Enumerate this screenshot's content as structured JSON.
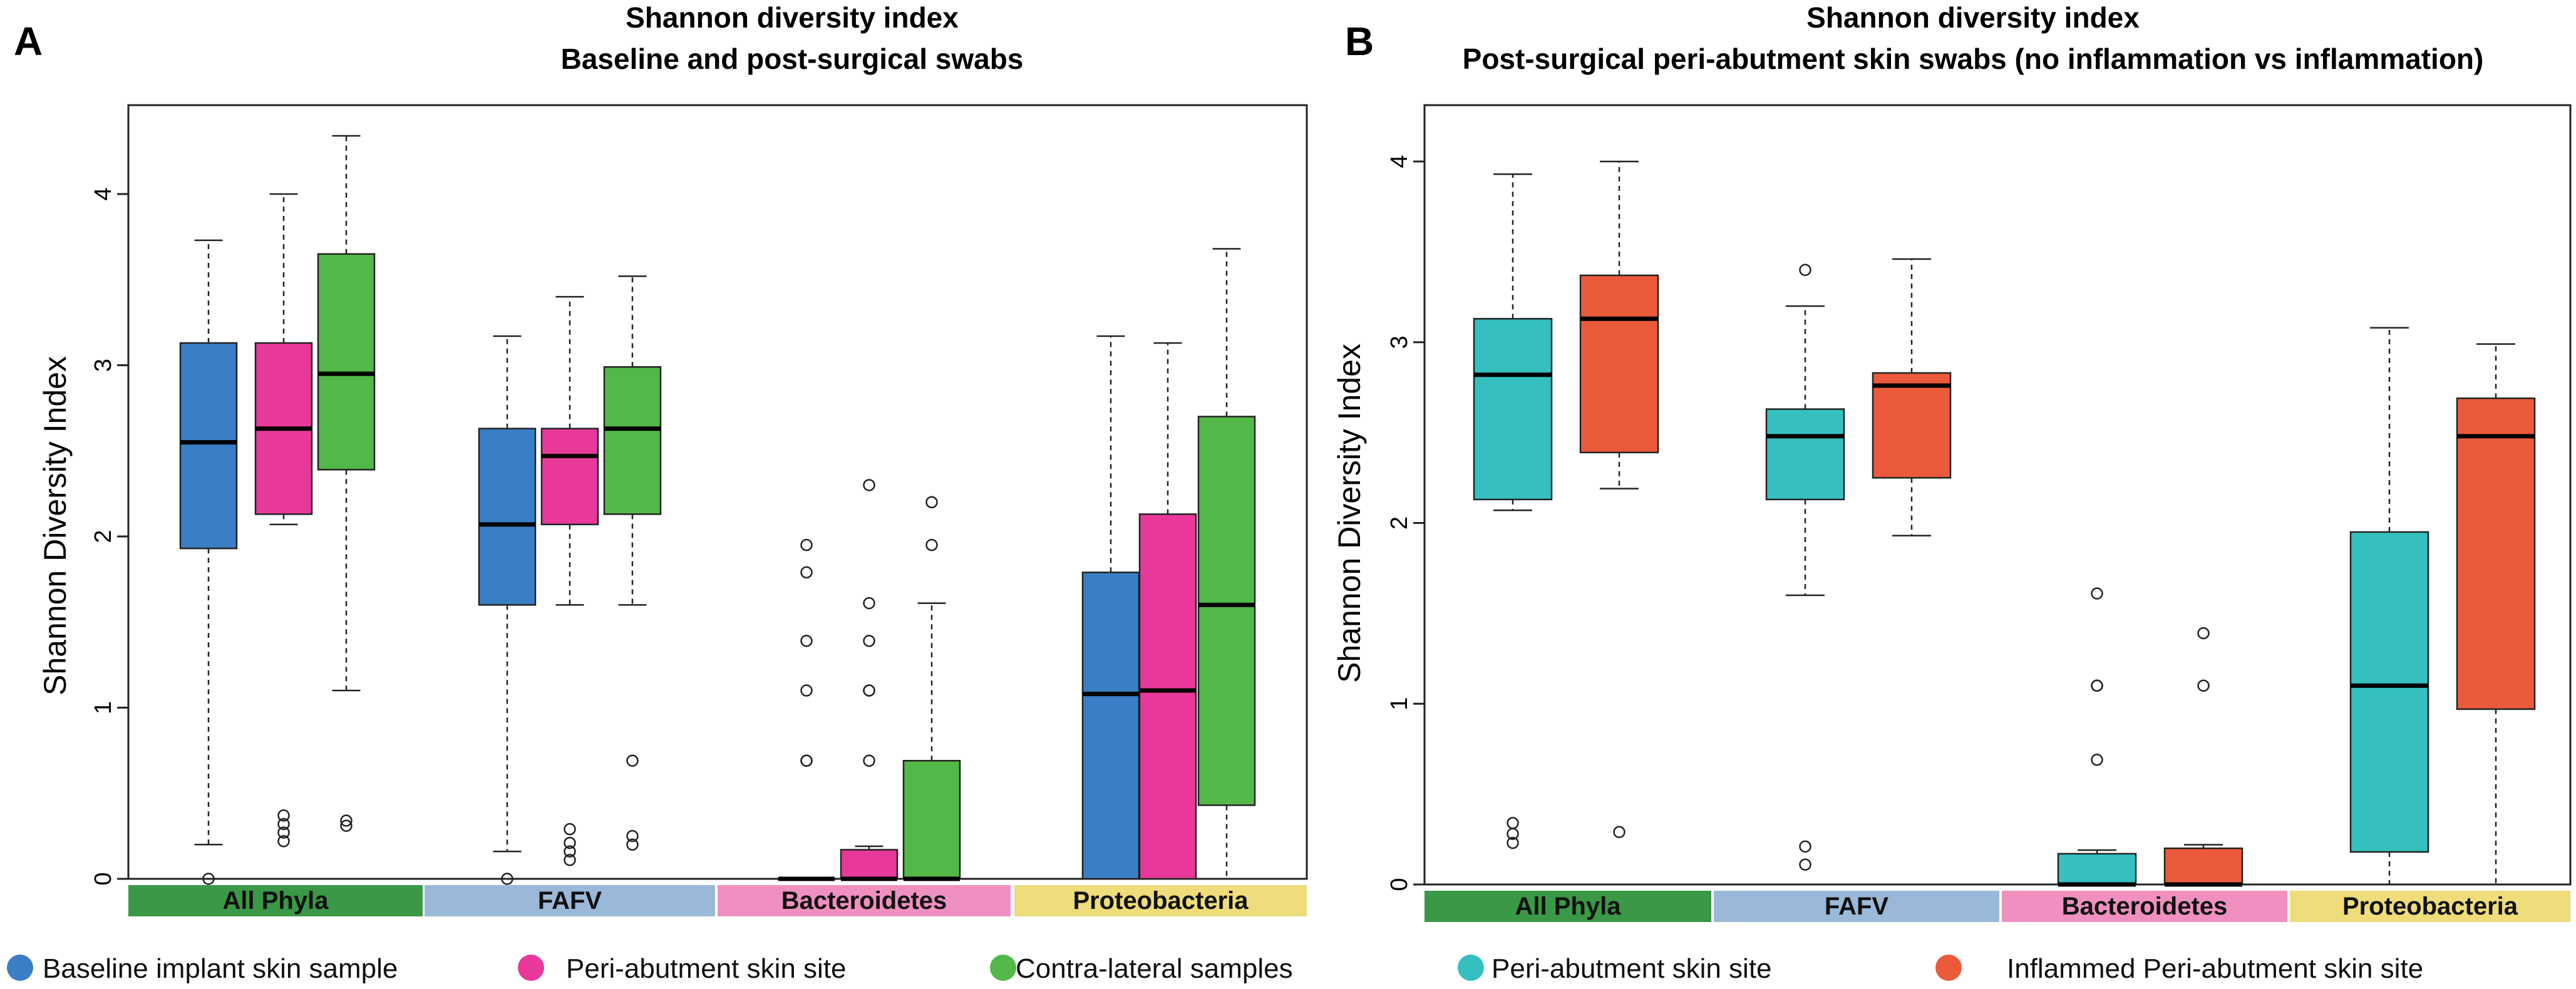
{
  "panels": [
    {
      "letter": "A",
      "title_line1": "Shannon diversity index",
      "title_line2": "Baseline and post-surgical swabs",
      "ylabel": "Shannon Diversity Index",
      "ylim": [
        0,
        4.5
      ],
      "yticks": [
        0,
        1,
        2,
        3,
        4
      ],
      "groups": [
        {
          "label": "All Phyla",
          "color": "#3a9847"
        },
        {
          "label": "FAFV",
          "color": "#9ab9d8"
        },
        {
          "label": "Bacteroidetes",
          "color": "#f090c0"
        },
        {
          "label": "Proteobacteria",
          "color": "#efdc7a"
        }
      ],
      "legend": [
        {
          "label": "Baseline implant skin sample",
          "color": "#3a7ec5"
        },
        {
          "label": "Peri-abutment skin site",
          "color": "#e8399a"
        },
        {
          "label": "Contra-lateral samples",
          "color": "#52b848"
        }
      ]
    },
    {
      "letter": "B",
      "title_line1": "Shannon diversity index",
      "title_line2": "Post-surgical peri-abutment skin swabs (no inflammation vs inflammation)",
      "ylabel": "Shannon Diversity Index",
      "ylim": [
        0,
        4.35
      ],
      "yticks": [
        0,
        1,
        2,
        3,
        4
      ],
      "groups": [
        {
          "label": "All Phyla",
          "color": "#3a9847"
        },
        {
          "label": "FAFV",
          "color": "#9ab9d8"
        },
        {
          "label": "Bacteroidetes",
          "color": "#f090c0"
        },
        {
          "label": "Proteobacteria",
          "color": "#efdc7a"
        }
      ],
      "legend": [
        {
          "label": "Peri-abutment skin site",
          "color": "#35bfbf"
        },
        {
          "label": "Inflammed Peri-abutment skin site",
          "color": "#ec5a3c"
        }
      ]
    }
  ],
  "chart_data": [
    {
      "type": "boxplot",
      "title": "Shannon diversity index — Baseline and post-surgical swabs",
      "ylabel": "Shannon Diversity Index",
      "ylim": [
        0,
        4.5
      ],
      "categories": [
        "All Phyla",
        "FAFV",
        "Bacteroidetes",
        "Proteobacteria"
      ],
      "series": [
        {
          "name": "Baseline implant skin sample",
          "color": "#3a7ec5",
          "boxes": [
            {
              "whisker_low": 0.2,
              "q1": 1.93,
              "median": 2.55,
              "q3": 3.13,
              "whisker_high": 3.73,
              "outliers": [
                0.0
              ]
            },
            {
              "whisker_low": 0.16,
              "q1": 1.6,
              "median": 2.07,
              "q3": 2.63,
              "whisker_high": 3.17,
              "outliers": [
                0.0
              ]
            },
            {
              "whisker_low": 0.0,
              "q1": 0.0,
              "median": 0.0,
              "q3": 0.0,
              "whisker_high": 0.0,
              "outliers": [
                0.69,
                0.69,
                1.1,
                1.39,
                1.79,
                1.95
              ]
            },
            {
              "whisker_low": 0.0,
              "q1": 0.0,
              "median": 1.08,
              "q3": 1.79,
              "whisker_high": 3.17,
              "outliers": []
            }
          ]
        },
        {
          "name": "Peri-abutment skin site",
          "color": "#e8399a",
          "boxes": [
            {
              "whisker_low": 2.07,
              "q1": 2.13,
              "median": 2.63,
              "q3": 3.13,
              "whisker_high": 4.0,
              "outliers": [
                0.22,
                0.27,
                0.32,
                0.37
              ]
            },
            {
              "whisker_low": 1.6,
              "q1": 2.07,
              "median": 2.47,
              "q3": 2.63,
              "whisker_high": 3.4,
              "outliers": [
                0.11,
                0.16,
                0.21,
                0.29
              ]
            },
            {
              "whisker_low": 0.0,
              "q1": 0.0,
              "median": 0.0,
              "q3": 0.17,
              "whisker_high": 0.19,
              "outliers": [
                0.69,
                1.1,
                1.1,
                1.39,
                1.61,
                2.3
              ]
            },
            {
              "whisker_low": 0.0,
              "q1": 0.0,
              "median": 1.1,
              "q3": 2.13,
              "whisker_high": 3.13,
              "outliers": []
            }
          ]
        },
        {
          "name": "Contra-lateral samples",
          "color": "#52b848",
          "boxes": [
            {
              "whisker_low": 1.1,
              "q1": 2.39,
              "median": 2.95,
              "q3": 3.65,
              "whisker_high": 4.34,
              "outliers": [
                0.31,
                0.34
              ]
            },
            {
              "whisker_low": 1.6,
              "q1": 2.13,
              "median": 2.63,
              "q3": 2.99,
              "whisker_high": 3.52,
              "outliers": [
                0.2,
                0.25,
                0.69
              ]
            },
            {
              "whisker_low": 0.0,
              "q1": 0.0,
              "median": 0.0,
              "q3": 0.69,
              "whisker_high": 1.61,
              "outliers": [
                1.95,
                2.2
              ]
            },
            {
              "whisker_low": 0.0,
              "q1": 0.43,
              "median": 1.6,
              "q3": 2.7,
              "whisker_high": 3.68,
              "outliers": []
            }
          ]
        }
      ]
    },
    {
      "type": "boxplot",
      "title": "Shannon diversity index — Post-surgical peri-abutment skin swabs (no inflammation vs inflammation)",
      "ylabel": "Shannon Diversity Index",
      "ylim": [
        0,
        4.35
      ],
      "categories": [
        "All Phyla",
        "FAFV",
        "Bacteroidetes",
        "Proteobacteria"
      ],
      "series": [
        {
          "name": "Peri-abutment skin site",
          "color": "#35bfbf",
          "boxes": [
            {
              "whisker_low": 2.07,
              "q1": 2.13,
              "median": 2.82,
              "q3": 3.13,
              "whisker_high": 3.93,
              "outliers": [
                0.23,
                0.28,
                0.34
              ]
            },
            {
              "whisker_low": 1.6,
              "q1": 2.13,
              "median": 2.48,
              "q3": 2.63,
              "whisker_high": 3.2,
              "outliers": [
                0.11,
                0.21,
                3.4
              ]
            },
            {
              "whisker_low": 0.0,
              "q1": 0.0,
              "median": 0.0,
              "q3": 0.17,
              "whisker_high": 0.19,
              "outliers": [
                0.69,
                1.1,
                1.1,
                1.61
              ]
            },
            {
              "whisker_low": 0.0,
              "q1": 0.18,
              "median": 1.1,
              "q3": 1.95,
              "whisker_high": 3.08,
              "outliers": []
            }
          ]
        },
        {
          "name": "Inflammed Peri-abutment skin site",
          "color": "#ec5a3c",
          "boxes": [
            {
              "whisker_low": 2.19,
              "q1": 2.39,
              "median": 3.13,
              "q3": 3.37,
              "whisker_high": 4.0,
              "outliers": [
                0.29
              ]
            },
            {
              "whisker_low": 1.93,
              "q1": 2.25,
              "median": 2.76,
              "q3": 2.83,
              "whisker_high": 3.46,
              "outliers": []
            },
            {
              "whisker_low": 0.0,
              "q1": 0.0,
              "median": 0.0,
              "q3": 0.2,
              "whisker_high": 0.22,
              "outliers": [
                1.1,
                1.39
              ]
            },
            {
              "whisker_low": 0.0,
              "q1": 0.97,
              "median": 2.48,
              "q3": 2.69,
              "whisker_high": 2.99,
              "outliers": []
            }
          ]
        }
      ]
    }
  ]
}
